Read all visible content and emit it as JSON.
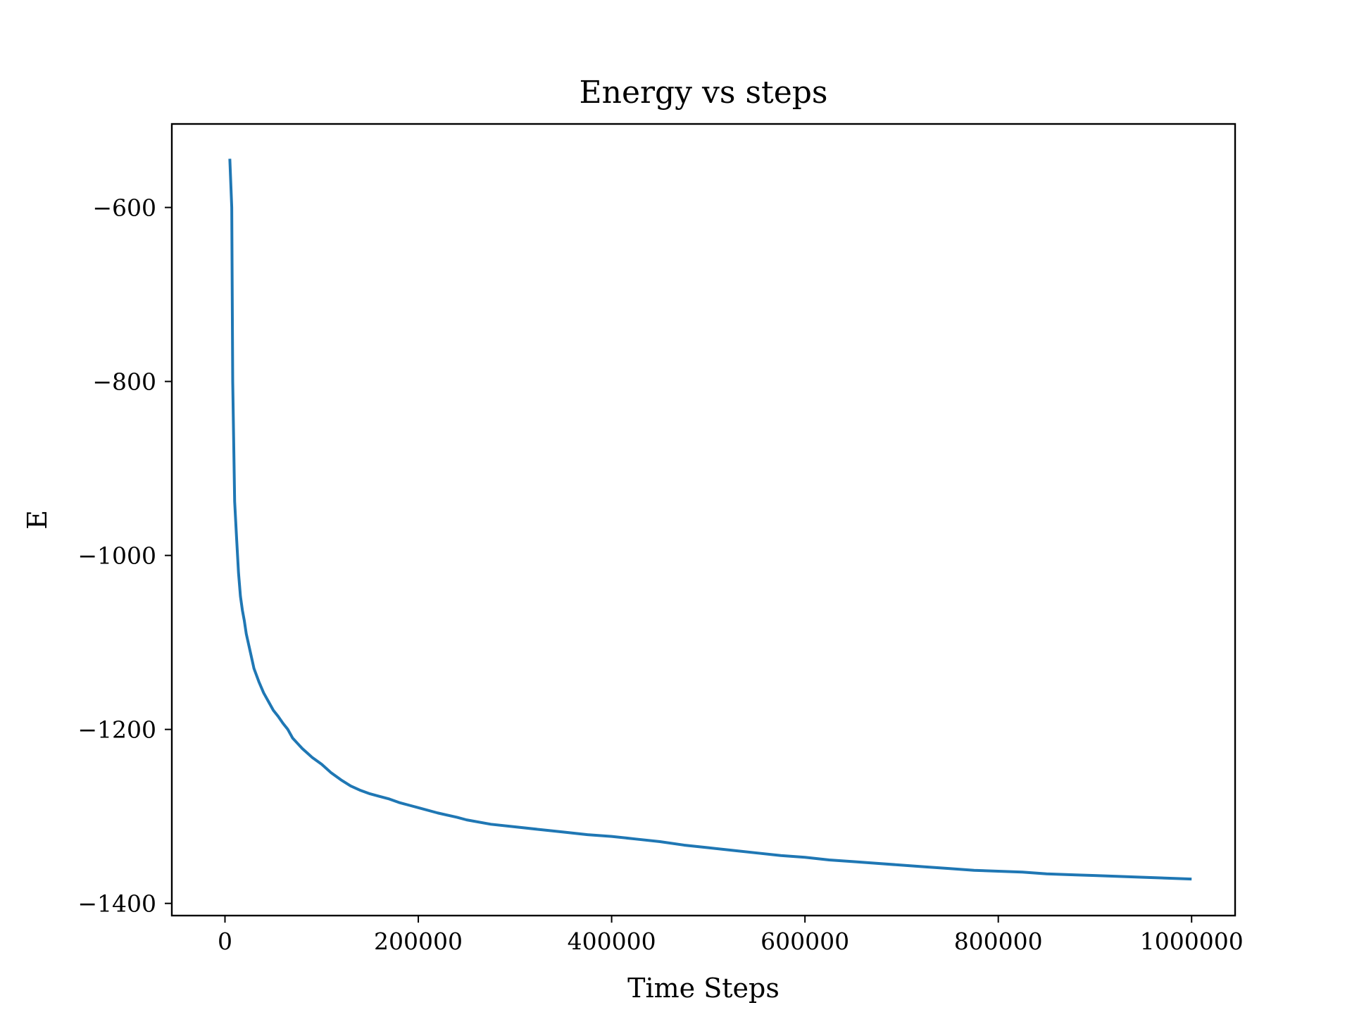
{
  "chart_data": {
    "type": "line",
    "title": "Energy vs steps",
    "xlabel": "Time Steps",
    "ylabel": "E",
    "xlim": [
      -55000,
      1045000
    ],
    "ylim": [
      -1414,
      -504
    ],
    "xticks": [
      0,
      200000,
      400000,
      600000,
      800000,
      1000000
    ],
    "xtick_labels": [
      "0",
      "200000",
      "400000",
      "600000",
      "800000",
      "1000000"
    ],
    "yticks": [
      -600,
      -800,
      -1000,
      -1200,
      -1400
    ],
    "ytick_labels": [
      "−600",
      "−800",
      "−1000",
      "−1200",
      "−1400"
    ],
    "grid": false,
    "series": [
      {
        "color": "#1f77b4",
        "x": [
          5000,
          7000,
          8000,
          10000,
          12000,
          14000,
          16000,
          18000,
          20000,
          22000,
          25000,
          28000,
          30000,
          35000,
          40000,
          45000,
          50000,
          55000,
          60000,
          65000,
          70000,
          75000,
          80000,
          85000,
          90000,
          100000,
          110000,
          120000,
          130000,
          140000,
          150000,
          160000,
          170000,
          180000,
          190000,
          200000,
          220000,
          240000,
          250000,
          275000,
          300000,
          325000,
          350000,
          375000,
          400000,
          425000,
          450000,
          475000,
          500000,
          525000,
          550000,
          575000,
          600000,
          625000,
          650000,
          675000,
          700000,
          725000,
          750000,
          775000,
          800000,
          825000,
          850000,
          875000,
          900000,
          925000,
          950000,
          975000,
          1000000
        ],
        "y": [
          -544,
          -600,
          -800,
          -938,
          -980,
          -1020,
          -1047,
          -1063,
          -1075,
          -1090,
          -1105,
          -1120,
          -1130,
          -1145,
          -1158,
          -1168,
          -1178,
          -1185,
          -1193,
          -1200,
          -1210,
          -1216,
          -1222,
          -1227,
          -1232,
          -1240,
          -1250,
          -1258,
          -1265,
          -1270,
          -1274,
          -1277,
          -1280,
          -1284,
          -1287,
          -1290,
          -1296,
          -1301,
          -1304,
          -1309,
          -1312,
          -1315,
          -1318,
          -1321,
          -1323,
          -1326,
          -1329,
          -1333,
          -1336,
          -1339,
          -1342,
          -1345,
          -1347,
          -1350,
          -1352,
          -1354,
          -1356,
          -1358,
          -1360,
          -1362,
          -1363,
          -1364,
          -1366,
          -1367,
          -1368,
          -1369,
          -1370,
          -1371,
          -1372
        ]
      }
    ]
  }
}
